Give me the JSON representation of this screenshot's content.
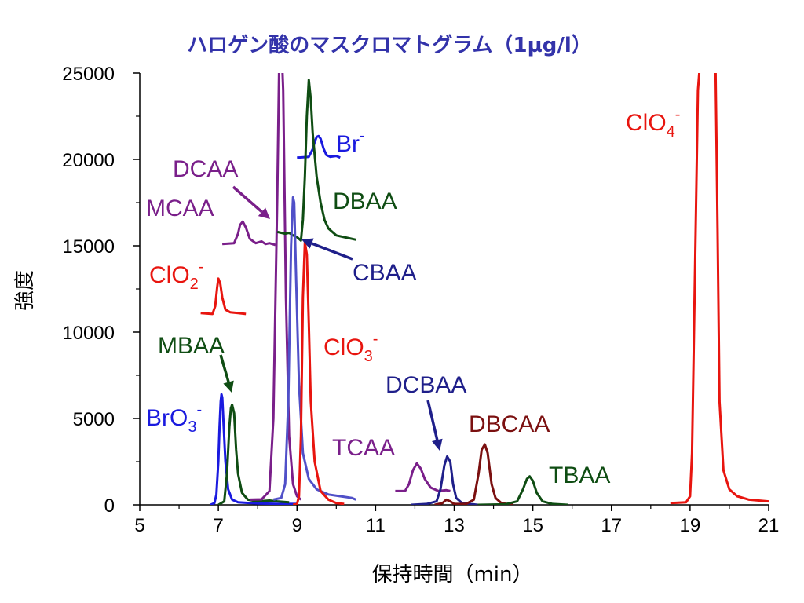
{
  "chart_data": {
    "type": "line",
    "title": "ハロゲン酸のマスクロマトグラム（1µg/l）",
    "xlabel": "保持時間（min）",
    "ylabel": "強度",
    "xlim": [
      5,
      21
    ],
    "ylim": [
      0,
      25000
    ],
    "x_ticks": [
      "5",
      "7",
      "9",
      "11",
      "13",
      "15",
      "17",
      "19",
      "21"
    ],
    "y_ticks": [
      "0",
      "5000",
      "10000",
      "15000",
      "20000",
      "25000"
    ],
    "grid": false,
    "series": [
      {
        "name": "ClO2-",
        "color": "#e8150f",
        "x": [
          6.55,
          6.85,
          6.92,
          6.97,
          7.0,
          7.05,
          7.1,
          7.18,
          7.3,
          7.5,
          7.7
        ],
        "y": [
          11100,
          11050,
          11500,
          12600,
          13100,
          12800,
          12000,
          11300,
          11150,
          11100,
          11050
        ]
      },
      {
        "name": "MCAA",
        "color": "#7a1f8a",
        "x": [
          7.1,
          7.4,
          7.5,
          7.55,
          7.62,
          7.7,
          7.8,
          7.95,
          8.1,
          8.2,
          8.3,
          8.45
        ],
        "y": [
          15100,
          15150,
          15700,
          16200,
          16400,
          16050,
          15400,
          15150,
          15250,
          15100,
          15150,
          15050
        ]
      },
      {
        "name": "Br-",
        "color": "#1a1adf",
        "x": [
          9.0,
          9.3,
          9.4,
          9.45,
          9.5,
          9.55,
          9.6,
          9.68,
          9.75,
          9.85,
          10.0,
          10.1
        ],
        "y": [
          20100,
          20150,
          20600,
          21000,
          21300,
          21350,
          21200,
          20600,
          20250,
          20150,
          20200,
          20100
        ]
      },
      {
        "name": "BrO3-",
        "color": "#1a1adf",
        "x": [
          6.8,
          6.9,
          6.95,
          7.0,
          7.03,
          7.06,
          7.08,
          7.1,
          7.13,
          7.18,
          7.25,
          7.35,
          7.5,
          7.7,
          8.0,
          8.5,
          9.0
        ],
        "y": [
          0,
          100,
          600,
          2500,
          4500,
          6000,
          6400,
          6200,
          4800,
          2500,
          900,
          300,
          150,
          120,
          80,
          60,
          50
        ]
      },
      {
        "name": "MBAA",
        "color": "#0f4d13",
        "x": [
          7.0,
          7.15,
          7.22,
          7.28,
          7.32,
          7.35,
          7.4,
          7.45,
          7.5,
          7.6,
          7.75,
          8.0,
          8.3,
          8.5,
          8.8
        ],
        "y": [
          0,
          200,
          1800,
          4500,
          5600,
          5800,
          5300,
          3200,
          1800,
          700,
          300,
          200,
          250,
          200,
          150
        ]
      },
      {
        "name": "DCAA",
        "color": "#7a1f8a",
        "x": [
          7.8,
          8.1,
          8.3,
          8.4,
          8.5,
          8.55,
          8.6,
          8.65,
          8.72,
          8.8,
          8.9,
          9.0,
          9.1
        ],
        "y": [
          300,
          320,
          800,
          5000,
          18000,
          26000,
          27000,
          24000,
          12000,
          4000,
          1200,
          500,
          300
        ]
      },
      {
        "name": "DBAA",
        "color": "#0f4d13",
        "x": [
          8.5,
          8.7,
          8.8,
          8.9,
          9.0,
          9.1,
          9.15,
          9.2,
          9.25,
          9.3,
          9.35,
          9.4,
          9.5,
          9.6,
          9.7,
          9.8,
          10.0,
          10.2,
          10.4,
          10.5
        ],
        "y": [
          15800,
          15700,
          15750,
          15600,
          15500,
          15300,
          16500,
          19000,
          22500,
          24600,
          23500,
          21500,
          19000,
          17500,
          16500,
          16000,
          15600,
          15500,
          15400,
          15350
        ]
      },
      {
        "name": "CBAA",
        "color": "#5050c8",
        "x": [
          8.4,
          8.6,
          8.7,
          8.78,
          8.85,
          8.9,
          8.93,
          8.98,
          9.05,
          9.15,
          9.3,
          9.5,
          9.8,
          10.1,
          10.4,
          10.5
        ],
        "y": [
          300,
          400,
          1200,
          6000,
          15000,
          17800,
          17500,
          13000,
          7000,
          3000,
          1500,
          900,
          600,
          500,
          400,
          300
        ]
      },
      {
        "name": "ClO3-",
        "color": "#e8150f",
        "x": [
          8.9,
          9.0,
          9.05,
          9.1,
          9.15,
          9.2,
          9.25,
          9.3,
          9.35,
          9.45,
          9.6,
          9.8,
          10.0,
          10.2
        ],
        "y": [
          0,
          50,
          500,
          4000,
          12000,
          15200,
          14500,
          10500,
          6000,
          2500,
          800,
          300,
          100,
          50
        ]
      },
      {
        "name": "TCAA",
        "color": "#7a1f8a",
        "x": [
          11.5,
          11.75,
          11.85,
          11.95,
          12.05,
          12.15,
          12.25,
          12.4,
          12.6,
          12.8,
          12.9
        ],
        "y": [
          800,
          800,
          1200,
          2000,
          2400,
          2100,
          1500,
          1000,
          800,
          850,
          800
        ]
      },
      {
        "name": "DCBAA",
        "color": "#1f1f8a",
        "x": [
          11.9,
          12.3,
          12.55,
          12.65,
          12.75,
          12.82,
          12.9,
          12.97,
          13.05,
          13.2,
          13.4,
          13.6
        ],
        "y": [
          0,
          50,
          200,
          900,
          2300,
          2800,
          2500,
          1200,
          400,
          100,
          50,
          0
        ]
      },
      {
        "name": "DBCAA",
        "color": "#7b1010",
        "x": [
          12.5,
          12.7,
          12.8,
          12.9,
          13.0,
          13.3,
          13.5,
          13.62,
          13.7,
          13.78,
          13.85,
          13.95,
          14.05,
          14.2,
          14.5
        ],
        "y": [
          0,
          100,
          300,
          200,
          50,
          50,
          300,
          1800,
          3200,
          3500,
          3000,
          1200,
          400,
          100,
          0
        ]
      },
      {
        "name": "TBAA",
        "color": "#0f4d13",
        "x": [
          13.6,
          14.3,
          14.6,
          14.75,
          14.85,
          14.92,
          15.0,
          15.1,
          15.25,
          15.5,
          15.9
        ],
        "y": [
          0,
          30,
          200,
          900,
          1500,
          1650,
          1400,
          700,
          200,
          50,
          0
        ]
      },
      {
        "name": "ClO4-",
        "color": "#e8150f",
        "x": [
          18.5,
          18.9,
          19.0,
          19.05,
          19.1,
          19.2,
          19.3,
          19.5,
          19.6,
          19.65,
          19.7,
          19.75,
          19.85,
          20.0,
          20.2,
          20.5,
          21.0
        ],
        "y": [
          100,
          150,
          500,
          3000,
          10000,
          24000,
          27000,
          27000,
          27000,
          25000,
          16000,
          6000,
          2000,
          900,
          500,
          300,
          200
        ]
      }
    ],
    "annotations": [
      {
        "label": "ClO",
        "sub": "4",
        "sup": "-",
        "color": "#e8150f"
      },
      {
        "label": "Br",
        "sub": "",
        "sup": "-",
        "color": "#1a1adf"
      },
      {
        "label": "DCAA",
        "sub": "",
        "sup": "",
        "color": "#7a1f8a"
      },
      {
        "label": "DBAA",
        "sub": "",
        "sup": "",
        "color": "#0f4d13"
      },
      {
        "label": "MCAA",
        "sub": "",
        "sup": "",
        "color": "#7a1f8a"
      },
      {
        "label": "ClO",
        "sub": "2",
        "sup": "-",
        "color": "#e8150f"
      },
      {
        "label": "CBAA",
        "sub": "",
        "sup": "",
        "color": "#1f1f8a"
      },
      {
        "label": "MBAA",
        "sub": "",
        "sup": "",
        "color": "#0f4d13"
      },
      {
        "label": "ClO",
        "sub": "3",
        "sup": "-",
        "color": "#e8150f"
      },
      {
        "label": "DCBAA",
        "sub": "",
        "sup": "",
        "color": "#1f1f8a"
      },
      {
        "label": "BrO",
        "sub": "3",
        "sup": "-",
        "color": "#1a1adf"
      },
      {
        "label": "DBCAA",
        "sub": "",
        "sup": "",
        "color": "#7b1010"
      },
      {
        "label": "TCAA",
        "sub": "",
        "sup": "",
        "color": "#7a1f8a"
      },
      {
        "label": "TBAA",
        "sub": "",
        "sup": "",
        "color": "#0f4d13"
      }
    ],
    "arrows": [
      {
        "color": "#7a1f8a"
      },
      {
        "color": "#1f1f8a"
      },
      {
        "color": "#0f4d13"
      },
      {
        "color": "#1f1f8a"
      }
    ]
  }
}
